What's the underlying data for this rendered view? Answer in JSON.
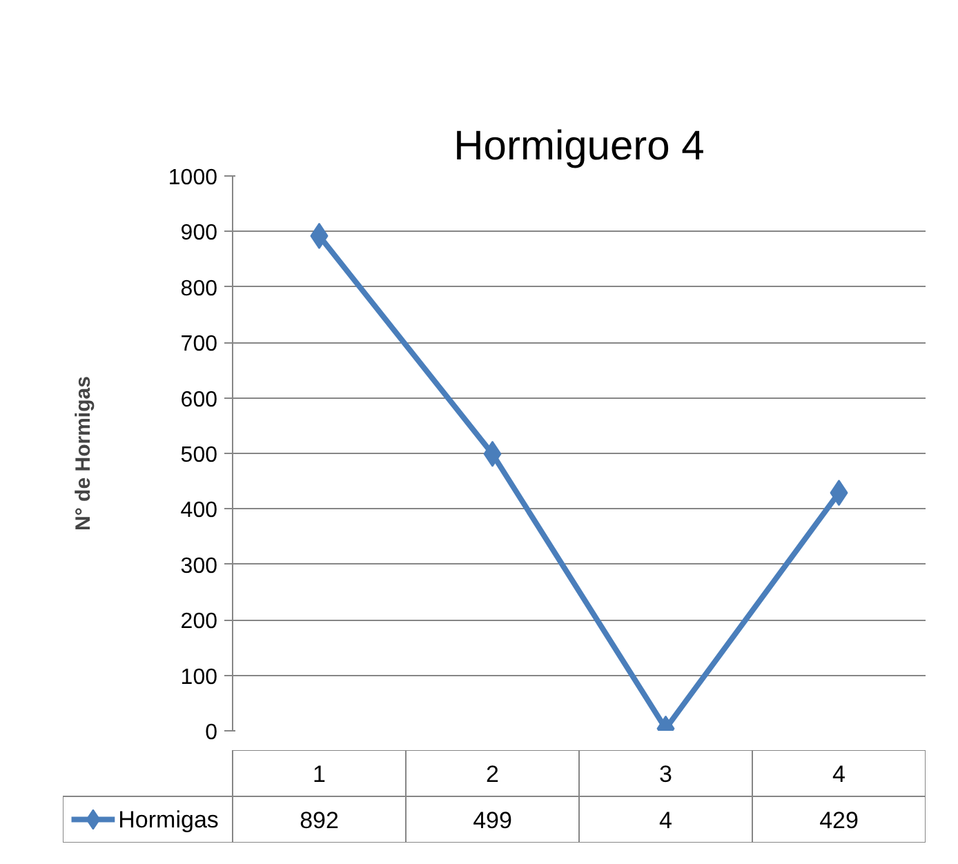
{
  "chart_data": {
    "type": "line",
    "title": "Hormiguero 4",
    "ylabel": "N° de Hormigas",
    "categories": [
      "1",
      "2",
      "3",
      "4"
    ],
    "series": [
      {
        "name": "Hormigas",
        "color": "#4a7ebb",
        "values": [
          892,
          499,
          4,
          429
        ]
      }
    ],
    "ylim": [
      0,
      1000
    ],
    "yticks": [
      0,
      100,
      200,
      300,
      400,
      500,
      600,
      700,
      800,
      900,
      1000
    ],
    "grid": "y",
    "legend": "bottom",
    "marker": "diamond",
    "line_style": "solid",
    "data_labels": true
  }
}
